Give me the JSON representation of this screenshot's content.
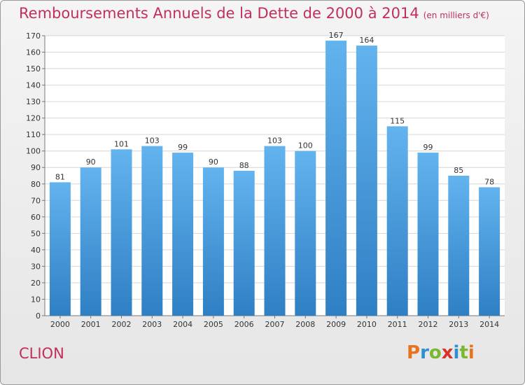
{
  "title": "Remboursements Annuels de la Dette de 2000 à 2014",
  "unit_note": "(en milliers d'€)",
  "commune": "CLION",
  "logo": {
    "letters": [
      "P",
      "r",
      "o",
      "x",
      "i",
      "t",
      "i"
    ],
    "colors": [
      "#e8731f",
      "#2f8fd1",
      "#7cb82f",
      "#d8342a",
      "#2f8fd1",
      "#7cb82f",
      "#e8731f"
    ]
  },
  "colors": {
    "bar_top": "#62b3ee",
    "bar_bottom": "#2f7fc4",
    "title": "#c0305a"
  },
  "chart_data": {
    "type": "bar",
    "categories": [
      "2000",
      "2001",
      "2002",
      "2003",
      "2004",
      "2005",
      "2006",
      "2007",
      "2008",
      "2009",
      "2010",
      "2011",
      "2012",
      "2013",
      "2014"
    ],
    "values": [
      81,
      90,
      101,
      103,
      99,
      90,
      88,
      103,
      100,
      167,
      164,
      115,
      99,
      85,
      78
    ],
    "ylim": [
      0,
      170
    ],
    "yticks": [
      0,
      10,
      20,
      30,
      40,
      50,
      60,
      70,
      80,
      90,
      100,
      110,
      120,
      130,
      140,
      150,
      160,
      170
    ],
    "grid": true
  }
}
